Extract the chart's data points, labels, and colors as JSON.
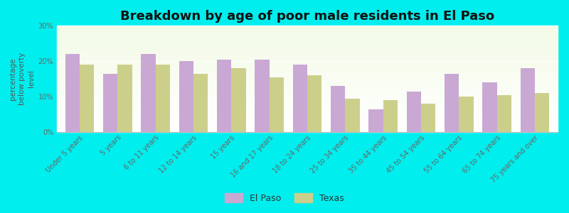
{
  "title": "Breakdown by age of poor male residents in El Paso",
  "ylabel": "percentage\nbelow poverty\nlevel",
  "categories": [
    "Under 5 years",
    "5 years",
    "6 to 11 years",
    "12 to 14 years",
    "15 years",
    "16 and 17 years",
    "18 to 24 years",
    "25 to 34 years",
    "35 to 44 years",
    "45 to 54 years",
    "55 to 64 years",
    "65 to 74 years",
    "75 years and over"
  ],
  "el_paso": [
    22.0,
    16.5,
    22.0,
    20.0,
    20.5,
    20.5,
    19.0,
    13.0,
    6.5,
    11.5,
    16.5,
    14.0,
    18.0
  ],
  "texas": [
    19.0,
    19.0,
    19.0,
    16.5,
    18.0,
    15.5,
    16.0,
    9.5,
    9.0,
    8.0,
    10.0,
    10.5,
    11.0
  ],
  "el_paso_color": "#c9a8d4",
  "texas_color": "#cccf8a",
  "background_color": "#00eeee",
  "ylim": [
    0,
    30
  ],
  "yticks": [
    0,
    10,
    20,
    30
  ],
  "ytick_labels": [
    "0%",
    "10%",
    "20%",
    "30%"
  ],
  "title_fontsize": 13,
  "axis_label_fontsize": 7.5,
  "tick_fontsize": 7,
  "legend_label_elpaso": "El Paso",
  "legend_label_texas": "Texas",
  "bar_width": 0.38
}
